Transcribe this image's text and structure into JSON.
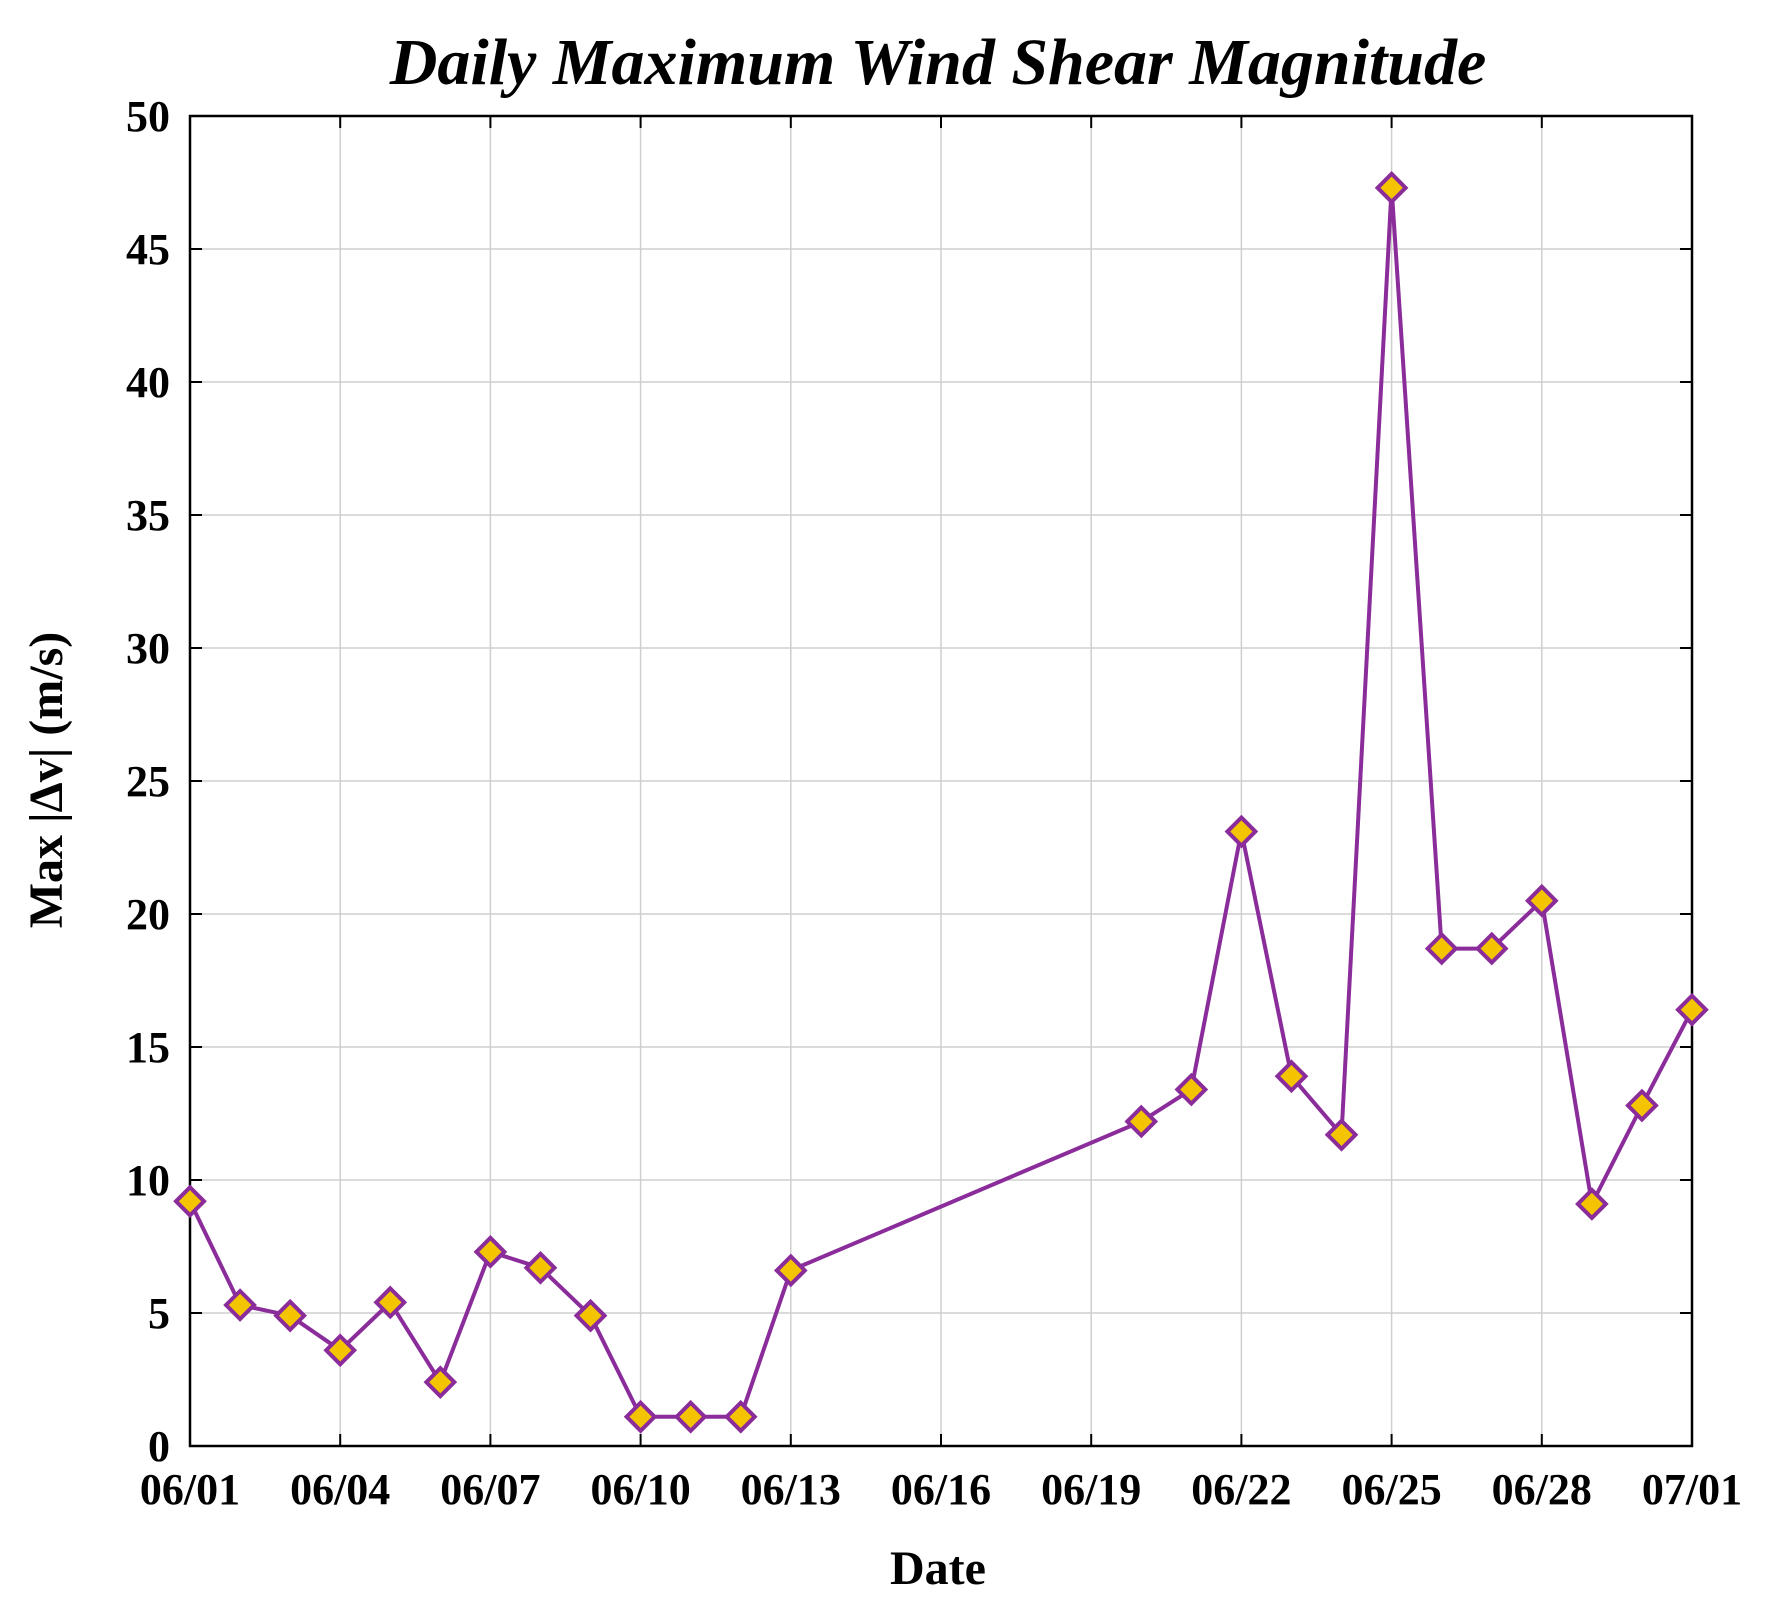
{
  "chart_data": {
    "type": "line",
    "title": "Daily Maximum Wind Shear Magnitude",
    "xlabel": "Date",
    "ylabel": "Max |Δv| (m/s)",
    "xlim": [
      "06/01",
      "07/01"
    ],
    "ylim": [
      0,
      50
    ],
    "x_ticks": [
      "06/01",
      "06/04",
      "06/07",
      "06/10",
      "06/13",
      "06/16",
      "06/19",
      "06/22",
      "06/25",
      "06/28",
      "07/01"
    ],
    "y_ticks": [
      "0",
      "5",
      "10",
      "15",
      "20",
      "25",
      "30",
      "35",
      "40",
      "45",
      "50"
    ],
    "grid": true,
    "colors": {
      "line": "#8B2C9B",
      "marker_fill": "#F5C400",
      "marker_edge": "#8B2C9B"
    },
    "marker": "diamond",
    "series": [
      {
        "x": [
          "06/01",
          "06/02",
          "06/03",
          "06/04",
          "06/05",
          "06/06",
          "06/07",
          "06/08",
          "06/09",
          "06/10",
          "06/11",
          "06/12",
          "06/13",
          "06/20",
          "06/21",
          "06/22",
          "06/23",
          "06/24",
          "06/25",
          "06/26",
          "06/27",
          "06/28",
          "06/29",
          "06/30",
          "07/01"
        ],
        "values": [
          9.2,
          5.3,
          4.9,
          3.6,
          5.4,
          2.4,
          7.3,
          6.7,
          4.9,
          1.1,
          1.1,
          1.1,
          6.6,
          12.2,
          13.4,
          23.1,
          13.9,
          11.7,
          47.3,
          18.7,
          18.7,
          20.5,
          9.1,
          12.8,
          16.4
        ]
      }
    ]
  }
}
